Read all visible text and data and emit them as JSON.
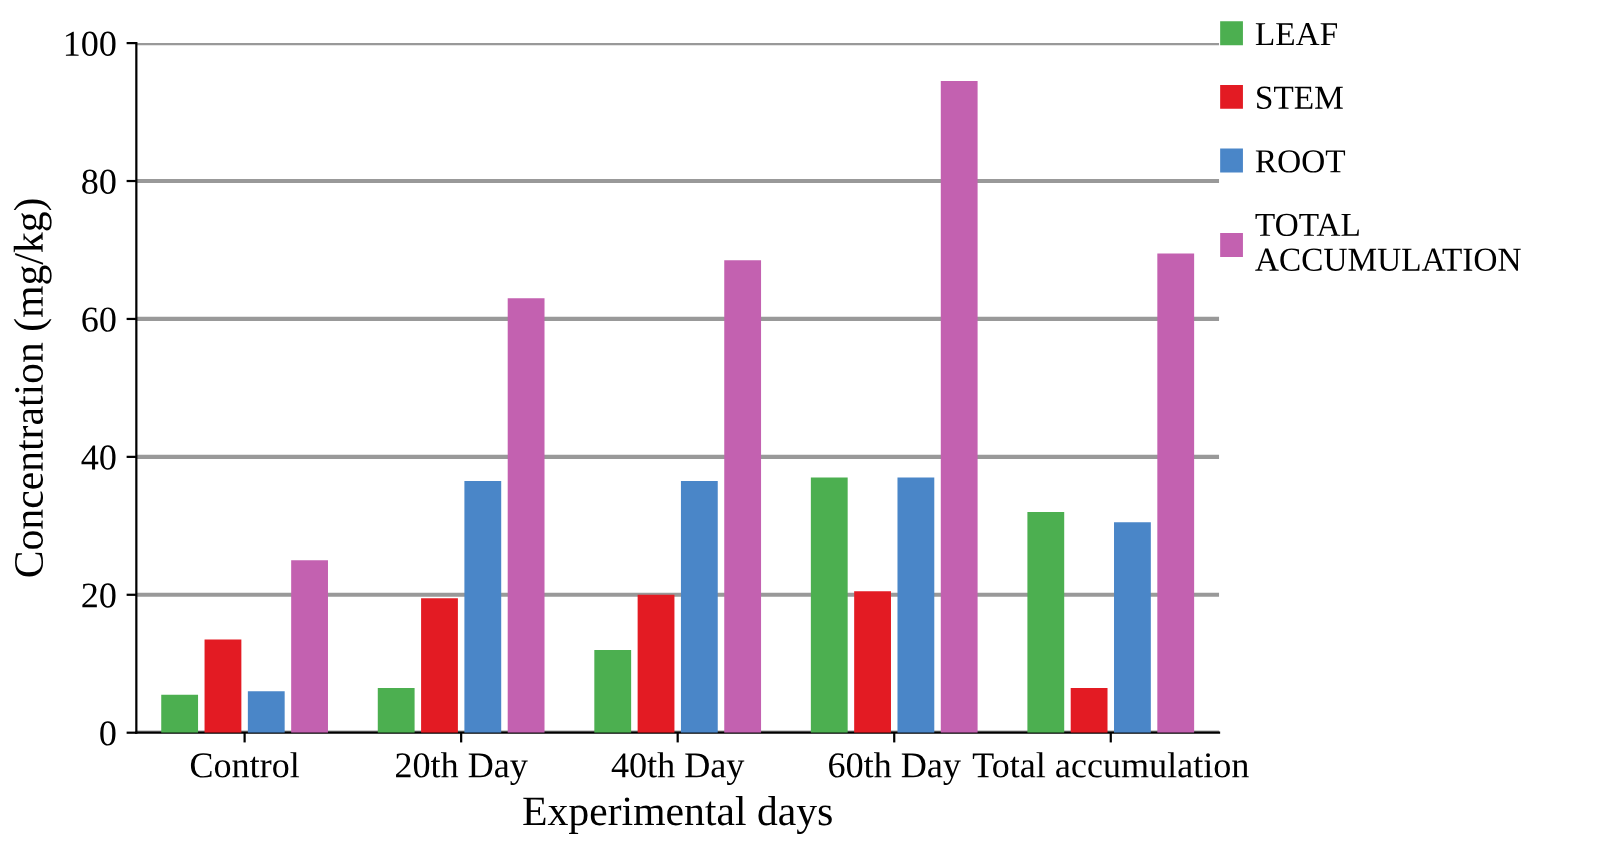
{
  "chart_data": {
    "type": "bar",
    "xlabel": "Experimental days",
    "ylabel": "Concentration (mg/kg)",
    "categories": [
      "Control",
      "20th Day",
      "40th Day",
      "60th Day",
      "Total accumulation"
    ],
    "series": [
      {
        "name": "LEAF",
        "color": "#4caf50",
        "values": [
          5.5,
          6.5,
          12,
          37,
          32
        ]
      },
      {
        "name": "STEM",
        "color": "#e31b23",
        "values": [
          13.5,
          19.5,
          20,
          20.5,
          6.5
        ]
      },
      {
        "name": "ROOT",
        "color": "#4a86c8",
        "values": [
          6,
          36.5,
          36.5,
          37,
          30.5
        ]
      },
      {
        "name": "TOTAL\nACCUMULATION",
        "color": "#c361b0",
        "values": [
          25,
          63,
          68.5,
          94.5,
          69.5
        ]
      }
    ],
    "ylim": [
      0,
      100
    ],
    "yticks": [
      0,
      20,
      40,
      60,
      80,
      100
    ],
    "grid": "y",
    "legend": "top right"
  }
}
